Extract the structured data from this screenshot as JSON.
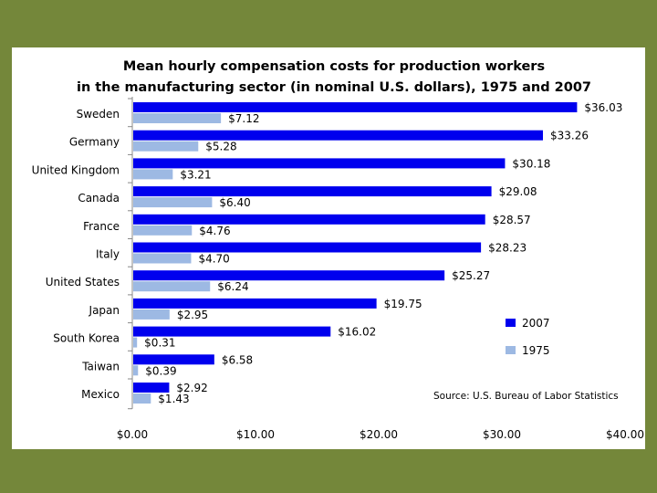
{
  "chart_data": {
    "type": "bar",
    "orientation": "horizontal",
    "title_lines": [
      "Mean hourly compensation costs for production workers",
      "in the manufacturing sector (in nominal U.S. dollars), 1975 and 2007"
    ],
    "categories": [
      "Sweden",
      "Germany",
      "United Kingdom",
      "Canada",
      "France",
      "Italy",
      "United States",
      "Japan",
      "South Korea",
      "Taiwan",
      "Mexico"
    ],
    "series": [
      {
        "name": "2007",
        "color": "#0000ee",
        "values": [
          36.03,
          33.26,
          30.18,
          29.08,
          28.57,
          28.23,
          25.27,
          19.75,
          16.02,
          6.58,
          2.92
        ],
        "labels": [
          "$36.03",
          "$33.26",
          "$30.18",
          "$29.08",
          "$28.57",
          "$28.23",
          "$25.27",
          "$19.75",
          "$16.02",
          "$6.58",
          "$2.92"
        ]
      },
      {
        "name": "1975",
        "color": "#9db9e3",
        "values": [
          7.12,
          5.28,
          3.21,
          6.4,
          4.76,
          4.7,
          6.24,
          2.95,
          0.31,
          0.39,
          1.43
        ],
        "labels": [
          "$7.12",
          "$5.28",
          "$3.21",
          "$6.40",
          "$4.76",
          "$4.70",
          "$6.24",
          "$2.95",
          "$0.31",
          "$0.39",
          "$1.43"
        ]
      }
    ],
    "xlim": [
      0,
      40
    ],
    "xticks": [
      0,
      10,
      20,
      30,
      40
    ],
    "xtick_labels": [
      "$0.00",
      "$10.00",
      "$20.00",
      "$30.00",
      "$40.00"
    ],
    "xlabel": "",
    "ylabel": "",
    "grid": false,
    "legend_position": "right",
    "source": "Source: U.S. Bureau of Labor Statistics"
  }
}
